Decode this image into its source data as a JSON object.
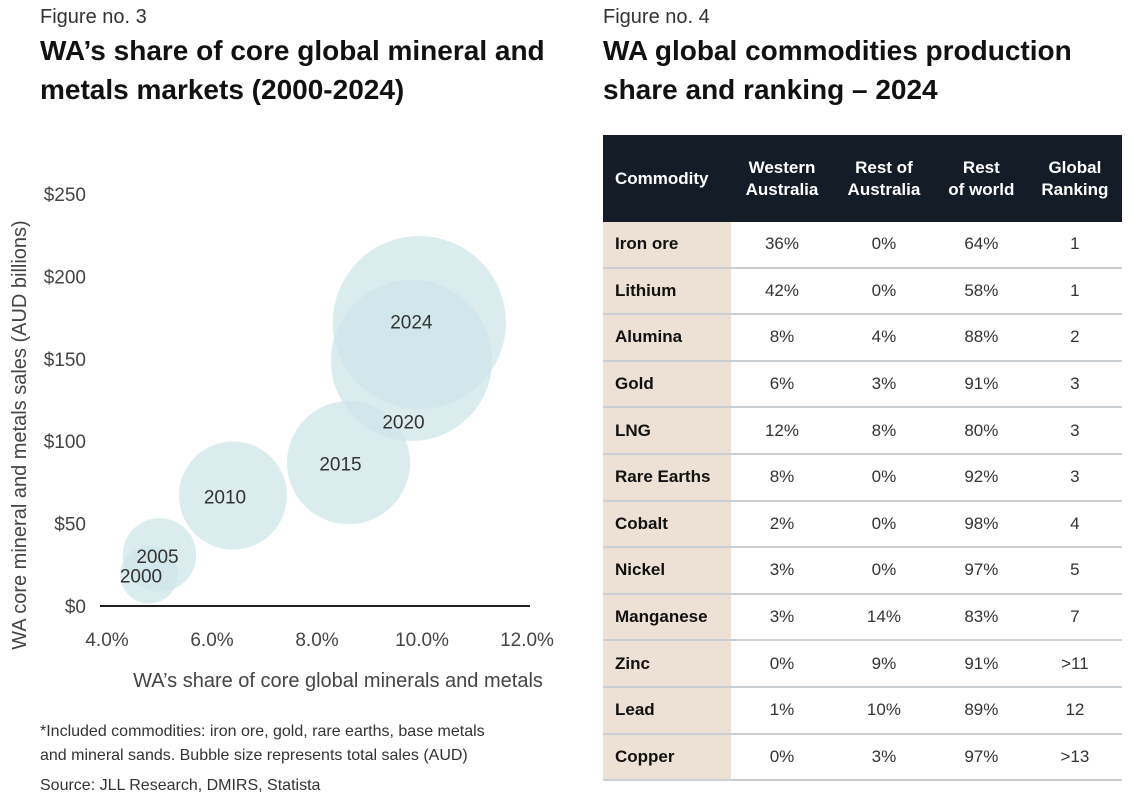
{
  "left": {
    "figure_label": "Figure no. 3",
    "title_line1": "WA’s share of core global mineral and",
    "title_line2": "metals markets (2000-2024)",
    "footnote_line1": "*Included commodities: iron ore, gold, rare earths, base metals",
    "footnote_line2": "and mineral sands. Bubble size represents total sales (AUD)",
    "source": "Source: JLL Research, DMIRS, Statista"
  },
  "chart_data": {
    "type": "bubble",
    "xlabel": "WA’s share of core global minerals and metals",
    "ylabel": "WA core mineral and metals sales (AUD billions)",
    "xlim": [
      4.0,
      12.0
    ],
    "ylim": [
      0,
      250
    ],
    "xticks": [
      "4.0%",
      "6.0%",
      "8.0%",
      "10.0%",
      "12.0%"
    ],
    "xtick_values": [
      4,
      6,
      8,
      10,
      12
    ],
    "yticks": [
      "$0",
      "$50",
      "$100",
      "$150",
      "$200",
      "$250"
    ],
    "ytick_values": [
      0,
      50,
      100,
      150,
      200,
      250
    ],
    "grid": false,
    "bubble_color": "#cfe5ea",
    "points": [
      {
        "label": "2000",
        "x": 4.8,
        "y": 19,
        "size": 19
      },
      {
        "label": "2005",
        "x": 5.0,
        "y": 31,
        "size": 31
      },
      {
        "label": "2010",
        "x": 6.4,
        "y": 67,
        "size": 67
      },
      {
        "label": "2015",
        "x": 8.6,
        "y": 87,
        "size": 87
      },
      {
        "label": "2020",
        "x": 9.8,
        "y": 149,
        "size": 149
      },
      {
        "label": "2024",
        "x": 9.95,
        "y": 172,
        "size": 172
      }
    ]
  },
  "right": {
    "figure_label": "Figure no. 4",
    "title_line1": "WA global commodities production",
    "title_line2": "share and ranking – 2024",
    "headers": [
      [
        "Commodity",
        ""
      ],
      [
        "Western",
        "Australia"
      ],
      [
        "Rest of",
        "Australia"
      ],
      [
        "Rest",
        "of world"
      ],
      [
        "Global",
        "Ranking"
      ]
    ],
    "rows": [
      [
        "Iron ore",
        "36%",
        "0%",
        "64%",
        "1"
      ],
      [
        "Lithium",
        "42%",
        "0%",
        "58%",
        "1"
      ],
      [
        "Alumina",
        "8%",
        "4%",
        "88%",
        "2"
      ],
      [
        "Gold",
        "6%",
        "3%",
        "91%",
        "3"
      ],
      [
        "LNG",
        "12%",
        "8%",
        "80%",
        "3"
      ],
      [
        "Rare Earths",
        "8%",
        "0%",
        "92%",
        "3"
      ],
      [
        "Cobalt",
        "2%",
        "0%",
        "98%",
        "4"
      ],
      [
        "Nickel",
        "3%",
        "0%",
        "97%",
        "5"
      ],
      [
        "Manganese",
        "3%",
        "14%",
        "83%",
        "7"
      ],
      [
        "Zinc",
        "0%",
        "9%",
        "91%",
        ">11"
      ],
      [
        "Lead",
        "1%",
        "10%",
        "89%",
        "12"
      ],
      [
        "Copper",
        "0%",
        "3%",
        "97%",
        ">13"
      ]
    ]
  }
}
